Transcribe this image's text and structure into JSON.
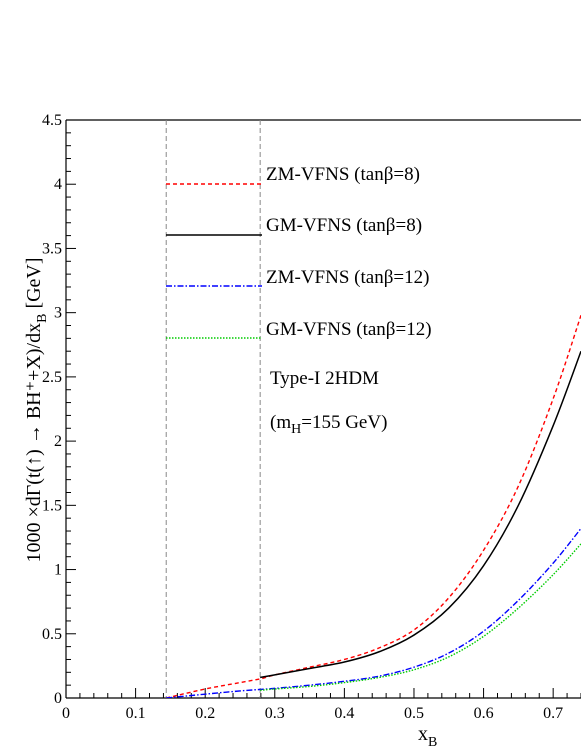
{
  "chart_data": {
    "type": "line",
    "title": "",
    "xlabel": "x_B",
    "ylabel": "1000 ×dΓ(t(↑) → BH⁺+X)/dx_B  [GeV]",
    "xlim": [
      0,
      0.74
    ],
    "ylim": [
      0,
      4.5
    ],
    "x_ticks": [
      "0",
      "0.1",
      "0.2",
      "0.3",
      "0.4",
      "0.5",
      "0.6",
      "0.7"
    ],
    "y_ticks": [
      "0",
      "0.5",
      "1",
      "1.5",
      "2",
      "2.5",
      "3",
      "3.5",
      "4",
      "4.5"
    ],
    "grid": false,
    "vertical_lines": [
      0.144,
      0.279
    ],
    "legend_position": "upper-left inside",
    "series": [
      {
        "name": "ZM-VFNS (tanβ=8)",
        "color": "#ff0000",
        "style": "dashed",
        "x": [
          0.144,
          0.2,
          0.25,
          0.28,
          0.3,
          0.35,
          0.4,
          0.45,
          0.5,
          0.55,
          0.6,
          0.65,
          0.7,
          0.74
        ],
        "y": [
          0.0,
          0.07,
          0.12,
          0.15,
          0.18,
          0.24,
          0.3,
          0.39,
          0.53,
          0.78,
          1.15,
          1.65,
          2.33,
          2.98
        ]
      },
      {
        "name": "GM-VFNS (tanβ=8)",
        "color": "#000000",
        "style": "solid",
        "x": [
          0.279,
          0.3,
          0.35,
          0.4,
          0.45,
          0.5,
          0.55,
          0.6,
          0.65,
          0.7,
          0.74
        ],
        "y": [
          0.16,
          0.18,
          0.23,
          0.28,
          0.36,
          0.49,
          0.7,
          1.03,
          1.5,
          2.12,
          2.7
        ]
      },
      {
        "name": "ZM-VFNS (tanβ=12)",
        "color": "#0000ff",
        "style": "dash-dot",
        "x": [
          0.144,
          0.2,
          0.25,
          0.3,
          0.35,
          0.4,
          0.45,
          0.5,
          0.55,
          0.6,
          0.65,
          0.7,
          0.74
        ],
        "y": [
          0.0,
          0.03,
          0.055,
          0.075,
          0.1,
          0.13,
          0.17,
          0.24,
          0.35,
          0.52,
          0.76,
          1.05,
          1.32
        ]
      },
      {
        "name": "GM-VFNS (tanβ=12)",
        "color": "#00cc00",
        "style": "dotted",
        "x": [
          0.279,
          0.3,
          0.35,
          0.4,
          0.45,
          0.5,
          0.55,
          0.6,
          0.65,
          0.7,
          0.74
        ],
        "y": [
          0.06,
          0.07,
          0.09,
          0.12,
          0.16,
          0.22,
          0.32,
          0.48,
          0.7,
          0.96,
          1.2
        ]
      }
    ],
    "annotations": [
      "Type-I 2HDM",
      "(m_H=155 GeV)"
    ]
  }
}
